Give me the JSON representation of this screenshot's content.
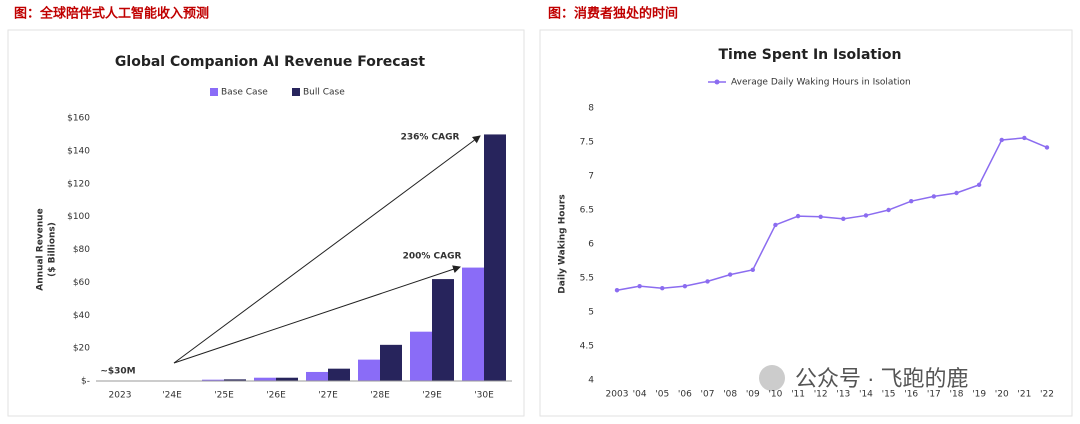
{
  "chart_data": [
    {
      "type": "bar",
      "caption": "图：全球陪伴式人工智能收入预测",
      "title": "Global Companion AI Revenue Forecast",
      "ylabel": [
        "Annual Revenue",
        "($ Billions)"
      ],
      "categories": [
        "2023",
        "'24E",
        "'25E",
        "'26E",
        "'27E",
        "'28E",
        "'29E",
        "'30E"
      ],
      "series": [
        {
          "name": "Base Case",
          "color": "#8a6cf7",
          "values": [
            0.03,
            0.2,
            0.8,
            2,
            5.5,
            13,
            30,
            69
          ]
        },
        {
          "name": "Bull Case",
          "color": "#27245c",
          "values": [
            0.03,
            0.3,
            1,
            2,
            7.5,
            22,
            62,
            150
          ]
        }
      ],
      "ylim": [
        0,
        160
      ],
      "yticks": [
        {
          "value": 0,
          "label": "$-"
        },
        {
          "value": 20,
          "label": "$20"
        },
        {
          "value": 40,
          "label": "$40"
        },
        {
          "value": 60,
          "label": "$60"
        },
        {
          "value": 80,
          "label": "$80"
        },
        {
          "value": 100,
          "label": "$100"
        },
        {
          "value": 120,
          "label": "$120"
        },
        {
          "value": 140,
          "label": "$140"
        },
        {
          "value": 160,
          "label": "$160"
        }
      ],
      "annotations": [
        "236% CAGR",
        "200% CAGR",
        "~$30M"
      ],
      "legend": "top"
    },
    {
      "type": "line",
      "caption": "图：消费者独处的时间",
      "title": "Time Spent In Isolation",
      "ylabel": [
        "Daily Waking Hours"
      ],
      "categories": [
        "2003",
        "'04",
        "'05",
        "'06",
        "'07",
        "'08",
        "'09",
        "'10",
        "'11",
        "'12",
        "'13",
        "'14",
        "'15",
        "'16",
        "'17",
        "'18",
        "'19",
        "'20",
        "'21",
        "'22"
      ],
      "series": [
        {
          "name": "Average Daily Waking Hours in Isolation",
          "color": "#8b6cf0",
          "values": [
            5.32,
            5.38,
            5.35,
            5.38,
            5.45,
            5.55,
            5.62,
            6.28,
            6.41,
            6.4,
            6.37,
            6.42,
            6.5,
            6.63,
            6.7,
            6.75,
            6.87,
            7.53,
            7.56,
            7.42
          ]
        }
      ],
      "ylim": [
        4,
        8
      ],
      "yticks": [
        4,
        4.5,
        5,
        5.5,
        6,
        6.5,
        7,
        7.5,
        8
      ],
      "legend": "top"
    }
  ],
  "watermark": "公众号 · 飞跑的鹿"
}
